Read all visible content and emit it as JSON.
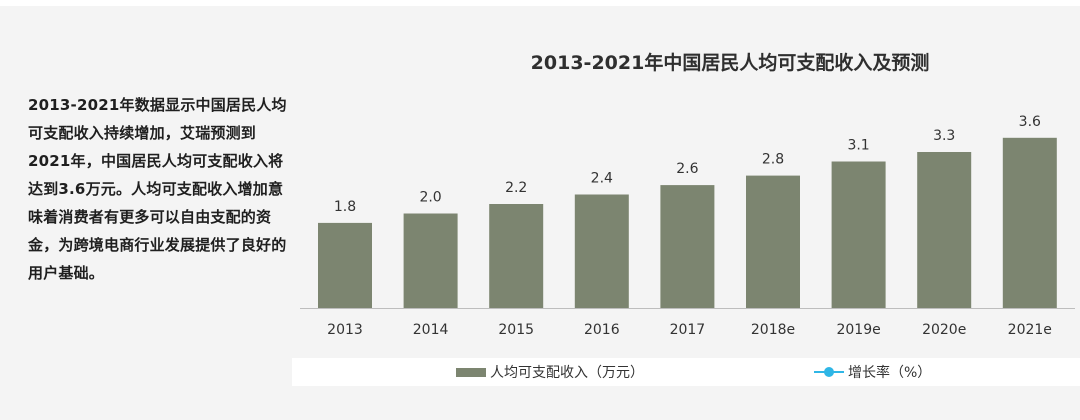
{
  "description": "2013-2021年数据显示中国居民人均可支配收入持续增加，艾瑞预测到2021年，中国居民人均可支配收入将达到3.6万元。人均可支配收入增加意味着消费者有更多可以自由支配的资金，为跨境电商行业发展提供了良好的用户基础。",
  "colors": {
    "bar": "#7c8570",
    "line": "#2fb6e6",
    "axis": "#bdbdbd"
  },
  "chart_data": {
    "type": "bar",
    "title": "2013-2021年中国居民人均可支配收入及预测",
    "categories": [
      "2013",
      "2014",
      "2015",
      "2016",
      "2017",
      "2018e",
      "2019e",
      "2020e",
      "2021e"
    ],
    "series": [
      {
        "name": "人均可支配收入（万元）",
        "values": [
          1.8,
          2.0,
          2.2,
          2.4,
          2.6,
          2.8,
          3.1,
          3.3,
          3.6
        ]
      }
    ],
    "value_labels": [
      "1.8",
      "2.0",
      "2.2",
      "2.4",
      "2.6",
      "2.8",
      "3.1",
      "3.3",
      "3.6"
    ],
    "legend": [
      {
        "name": "人均可支配收入（万元）",
        "marker": "bar"
      },
      {
        "name": "增长率（%）",
        "marker": "line"
      }
    ],
    "legend_position": "bottom",
    "ylim": [
      0,
      4.4
    ],
    "grid": false
  }
}
